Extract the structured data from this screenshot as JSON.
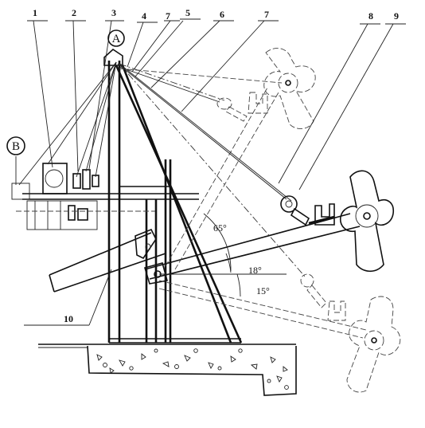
{
  "callouts": {
    "c1": "1",
    "c2": "2",
    "c3": "3",
    "c4": "4",
    "c7a": "7",
    "c5": "5",
    "c6": "6",
    "c7b": "7",
    "c8": "8",
    "c9": "9",
    "c10": "10"
  },
  "points": {
    "a": "A",
    "b": "B"
  },
  "angles": {
    "a65": "65°",
    "a18": "18°",
    "a15": "15°"
  }
}
